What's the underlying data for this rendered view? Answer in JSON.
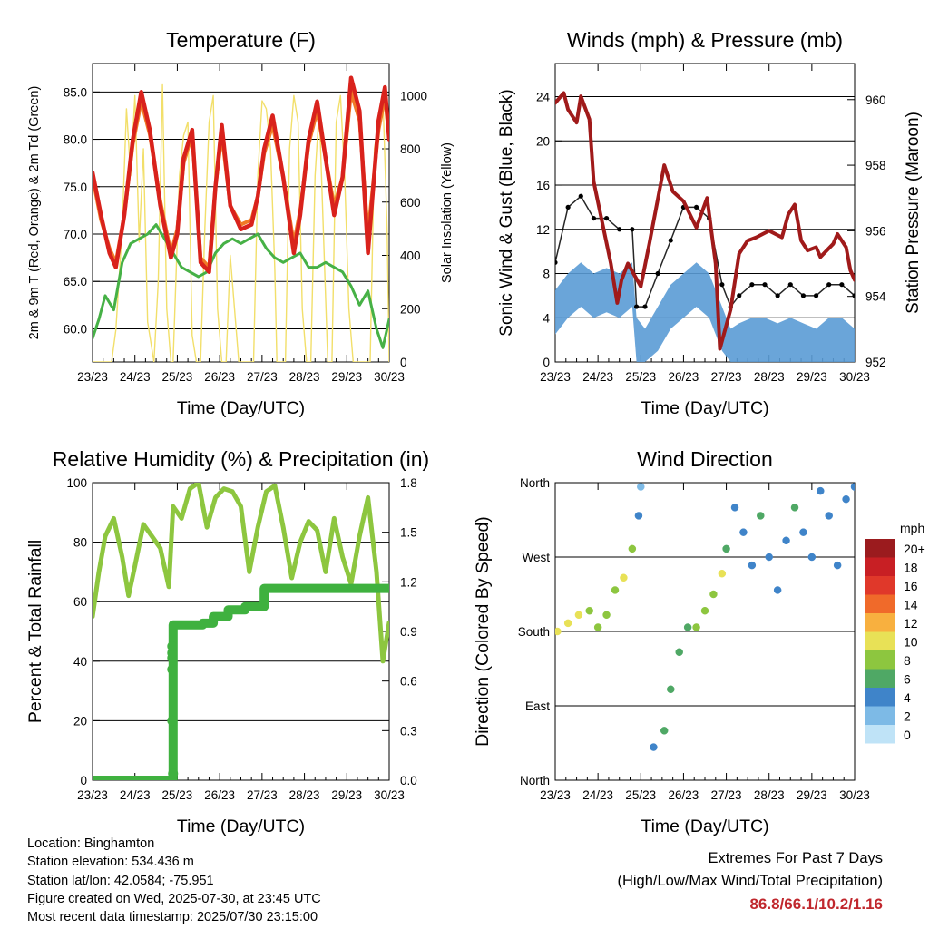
{
  "colors": {
    "temp_2m": "#d9221c",
    "temp_9m": "#f07a26",
    "dewpoint": "#46b146",
    "solar": "#f2df6a",
    "wind": "#5a9bd5",
    "gust": "#000000",
    "pressure": "#a01a1a",
    "rh": "#8dc63f",
    "precip": "#3fb13f",
    "extremes_text": "#c0272d"
  },
  "x_tick_labels": [
    "23/23",
    "24/23",
    "25/23",
    "26/23",
    "27/23",
    "28/23",
    "29/23",
    "30/23"
  ],
  "chart_data": [
    {
      "type": "line",
      "title": "Temperature (F)",
      "xlabel": "Time (Day/UTC)",
      "ylabel": "2m & 9m T (Red, Orange) & 2m Td (Green)",
      "ylabel_right": "Solar Insolation (Yellow)",
      "xlim": [
        0,
        7
      ],
      "ylim": [
        56.5,
        88.0
      ],
      "ylim_right": [
        0,
        1120
      ],
      "y_ticks": [
        "60.0",
        "65.0",
        "70.0",
        "75.0",
        "80.0",
        "85.0"
      ],
      "y_ticks_right": [
        "0",
        "200",
        "400",
        "600",
        "800",
        "1000"
      ],
      "grid": true,
      "series": [
        {
          "key": "temp2m",
          "axis": "left",
          "x": [
            0,
            0.2,
            0.4,
            0.55,
            0.75,
            0.95,
            1.15,
            1.35,
            1.6,
            1.85,
            2.0,
            2.15,
            2.35,
            2.55,
            2.75,
            2.9,
            3.05,
            3.25,
            3.5,
            3.75,
            3.9,
            4.05,
            4.25,
            4.5,
            4.75,
            4.9,
            5.1,
            5.3,
            5.5,
            5.7,
            5.9,
            6.1,
            6.3,
            6.5,
            6.75,
            6.9,
            7.0
          ],
          "values": [
            76.5,
            72,
            68,
            66.5,
            72,
            80,
            85,
            81,
            73,
            67.5,
            70,
            78,
            81,
            67,
            66,
            75,
            81.5,
            73,
            70.5,
            71,
            74,
            79,
            82.5,
            76,
            68,
            72,
            80,
            84,
            78,
            72,
            76,
            86.5,
            83,
            68,
            82,
            85.5,
            80
          ]
        },
        {
          "key": "temp9m",
          "axis": "left",
          "x": [
            0,
            0.2,
            0.4,
            0.55,
            0.75,
            0.95,
            1.15,
            1.35,
            1.6,
            1.85,
            2.0,
            2.15,
            2.35,
            2.55,
            2.75,
            2.9,
            3.05,
            3.25,
            3.5,
            3.75,
            3.9,
            4.05,
            4.25,
            4.5,
            4.75,
            4.9,
            5.1,
            5.3,
            5.5,
            5.7,
            5.9,
            6.1,
            6.3,
            6.5,
            6.75,
            6.9,
            7.0
          ],
          "values": [
            76,
            71.5,
            68.5,
            67,
            72,
            79.5,
            84,
            80.5,
            73.5,
            68,
            70.5,
            77.5,
            80.5,
            67.5,
            66.5,
            75,
            80.5,
            73,
            71,
            71.5,
            74,
            78.5,
            81.5,
            76,
            69,
            72.5,
            79.5,
            83,
            78,
            73,
            76,
            85,
            82,
            70,
            81,
            84.5,
            80
          ]
        },
        {
          "key": "dewpoint",
          "axis": "left",
          "x": [
            0,
            0.15,
            0.3,
            0.5,
            0.7,
            0.9,
            1.1,
            1.3,
            1.5,
            1.7,
            1.9,
            2.1,
            2.3,
            2.5,
            2.7,
            2.9,
            3.1,
            3.3,
            3.5,
            3.7,
            3.9,
            4.1,
            4.3,
            4.5,
            4.7,
            4.9,
            5.1,
            5.3,
            5.5,
            5.7,
            5.9,
            6.1,
            6.3,
            6.5,
            6.7,
            6.85,
            7.0
          ],
          "values": [
            59,
            61,
            63.5,
            62,
            67,
            69,
            69.5,
            70,
            71,
            69.5,
            68,
            66.5,
            66,
            65.5,
            66,
            68,
            69,
            69.5,
            69,
            69.5,
            70,
            68.5,
            67.5,
            67,
            67.5,
            68,
            66.5,
            66.5,
            67,
            66.5,
            66,
            64.5,
            62.5,
            64,
            60,
            58,
            61
          ]
        },
        {
          "key": "solar",
          "axis": "right",
          "x": [
            0,
            0.45,
            0.55,
            0.7,
            0.8,
            0.9,
            1.0,
            1.1,
            1.2,
            1.3,
            1.45,
            1.55,
            1.65,
            1.75,
            1.85,
            1.9,
            2.05,
            2.15,
            2.25,
            2.35,
            2.45,
            2.55,
            2.65,
            2.75,
            2.85,
            2.95,
            3.05,
            3.15,
            3.25,
            3.35,
            3.45,
            3.6,
            3.8,
            3.9,
            4.0,
            4.1,
            4.2,
            4.3,
            4.35,
            4.55,
            4.65,
            4.75,
            4.85,
            4.95,
            5.05,
            5.15,
            5.25,
            5.35,
            5.55,
            5.65,
            5.75,
            5.85,
            5.95,
            6.05,
            6.15,
            6.25,
            6.35,
            6.55,
            6.65,
            6.75,
            6.85,
            6.95,
            7.0
          ],
          "values": [
            0,
            0,
            120,
            500,
            950,
            700,
            1000,
            450,
            800,
            150,
            0,
            300,
            1040,
            200,
            0,
            0,
            700,
            850,
            900,
            100,
            0,
            0,
            500,
            900,
            1000,
            200,
            0,
            0,
            400,
            200,
            0,
            0,
            0,
            700,
            980,
            950,
            800,
            350,
            0,
            0,
            800,
            1000,
            900,
            200,
            0,
            0,
            700,
            950,
            0,
            0,
            900,
            1000,
            700,
            200,
            0,
            0,
            0,
            0,
            800,
            900,
            1000,
            500,
            0
          ]
        }
      ]
    },
    {
      "type": "line",
      "title": "Winds (mph) & Pressure (mb)",
      "xlabel": "Time (Day/UTC)",
      "ylabel": "Sonic Wind & Gust (Blue, Black)",
      "ylabel_right": "Station Pressure (Maroon)",
      "xlim": [
        0,
        7
      ],
      "ylim": [
        0,
        27
      ],
      "ylim_right": [
        952,
        961.1
      ],
      "y_ticks": [
        "0",
        "4",
        "8",
        "12",
        "16",
        "20",
        "24"
      ],
      "y_ticks_right": [
        "952",
        "954",
        "956",
        "958",
        "960"
      ],
      "grid": true,
      "series": [
        {
          "key": "wind",
          "axis": "left",
          "x": [
            0,
            0.3,
            0.6,
            0.9,
            1.2,
            1.5,
            1.8,
            1.9,
            2.1,
            2.4,
            2.7,
            3.0,
            3.3,
            3.6,
            3.9,
            4.1,
            4.3,
            4.6,
            4.9,
            5.2,
            5.5,
            5.8,
            6.1,
            6.4,
            6.7,
            7.0
          ],
          "values": [
            6.5,
            8,
            9,
            8,
            8.5,
            8,
            9,
            4,
            3,
            5,
            7,
            8,
            9,
            8,
            5,
            3,
            3.5,
            4,
            4,
            3.5,
            4,
            3.5,
            3,
            4,
            4,
            3
          ]
        },
        {
          "key": "gust",
          "axis": "left",
          "x": [
            0,
            0.3,
            0.6,
            0.9,
            1.2,
            1.5,
            1.8,
            1.9,
            2.1,
            2.4,
            2.7,
            3.0,
            3.3,
            3.6,
            3.9,
            4.1,
            4.3,
            4.6,
            4.9,
            5.2,
            5.5,
            5.8,
            6.1,
            6.4,
            6.7,
            7.0
          ],
          "values": [
            9,
            14,
            15,
            13,
            13,
            12,
            12,
            5,
            5,
            8,
            11,
            14,
            14,
            13,
            7,
            5,
            6,
            7,
            7,
            6,
            7,
            6,
            6,
            7,
            7,
            6
          ]
        },
        {
          "key": "pressure",
          "axis": "right",
          "x": [
            0,
            0.2,
            0.3,
            0.5,
            0.6,
            0.8,
            0.9,
            1.3,
            1.45,
            1.55,
            1.7,
            2.0,
            2.2,
            2.55,
            2.75,
            3.0,
            3.3,
            3.55,
            3.75,
            3.85,
            4.1,
            4.3,
            4.5,
            4.7,
            5.0,
            5.3,
            5.45,
            5.6,
            5.75,
            5.9,
            6.1,
            6.2,
            6.5,
            6.6,
            6.8,
            6.9,
            7.0
          ],
          "values": [
            959.9,
            960.2,
            959.7,
            959.3,
            960.1,
            959.4,
            957.5,
            955.0,
            953.8,
            954.5,
            955.0,
            954.3,
            955.6,
            958.0,
            957.2,
            956.9,
            956.1,
            957.0,
            955.0,
            952.4,
            953.6,
            955.3,
            955.7,
            955.8,
            956.0,
            955.8,
            956.5,
            956.8,
            955.7,
            955.4,
            955.5,
            955.2,
            955.6,
            955.9,
            955.5,
            954.8,
            954.5
          ]
        }
      ]
    },
    {
      "type": "line",
      "title": "Relative Humidity (%) & Precipitation (in)",
      "xlabel": "Time (Day/UTC)",
      "ylabel": "Percent & Total Rainfall",
      "xlim": [
        0,
        7
      ],
      "ylim": [
        0,
        100
      ],
      "ylim_right": [
        0,
        1.8
      ],
      "y_ticks": [
        "0",
        "20",
        "40",
        "60",
        "80",
        "100"
      ],
      "y_ticks_right": [
        "0.0",
        "0.3",
        "0.6",
        "0.9",
        "1.2",
        "1.5",
        "1.8"
      ],
      "grid": true,
      "series": [
        {
          "key": "rh",
          "axis": "left",
          "x": [
            0,
            0.15,
            0.3,
            0.5,
            0.7,
            0.85,
            1.0,
            1.2,
            1.4,
            1.6,
            1.8,
            1.9,
            2.1,
            2.3,
            2.5,
            2.7,
            2.9,
            3.1,
            3.3,
            3.5,
            3.7,
            3.9,
            4.1,
            4.3,
            4.5,
            4.7,
            4.9,
            5.1,
            5.3,
            5.5,
            5.7,
            5.9,
            6.1,
            6.3,
            6.5,
            6.7,
            6.85,
            7.0
          ],
          "values": [
            55,
            70,
            82,
            88,
            75,
            62,
            72,
            86,
            82,
            78,
            65,
            92,
            88,
            98,
            100,
            85,
            95,
            98,
            97,
            92,
            70,
            85,
            97,
            99,
            85,
            68,
            80,
            87,
            84,
            70,
            88,
            75,
            66,
            82,
            95,
            70,
            40,
            53
          ]
        },
        {
          "key": "precip",
          "axis": "right",
          "x": [
            0,
            1.9,
            1.9,
            2.6,
            2.6,
            2.85,
            2.85,
            3.2,
            3.2,
            3.6,
            3.6,
            4.05,
            4.05,
            7.0
          ],
          "values": [
            0,
            0,
            0.94,
            0.94,
            0.95,
            0.95,
            0.99,
            0.99,
            1.03,
            1.03,
            1.05,
            1.05,
            1.16,
            1.16
          ]
        },
        {
          "key": "precip_burst",
          "axis": "right",
          "x": [
            1.88,
            1.88,
            1.88,
            1.88,
            1.88,
            1.9
          ],
          "values": [
            0.36,
            0.67,
            0.74,
            0.77,
            0.81,
            0.04
          ]
        }
      ]
    },
    {
      "type": "scatter",
      "title": "Wind Direction",
      "xlabel": "Time (Day/UTC)",
      "ylabel": "Direction (Colored By Speed)",
      "xlim": [
        0,
        7
      ],
      "ylim": [
        0,
        360
      ],
      "y_ticks": [
        "North",
        "East",
        "South",
        "West",
        "North"
      ],
      "grid": true,
      "colorbar_title": "mph",
      "colorbar_labels": [
        "0",
        "2",
        "4",
        "6",
        "8",
        "10",
        "12",
        "14",
        "16",
        "18",
        "20+"
      ],
      "colorbar_colors": [
        "#bfe3f7",
        "#7dbae6",
        "#3f84c9",
        "#4fa865",
        "#8dc63f",
        "#e8e156",
        "#f8b03f",
        "#f06a2a",
        "#e0382a",
        "#c81f24",
        "#9b1b1e"
      ],
      "series": [
        {
          "key": "direction",
          "x": [
            0.05,
            0.3,
            0.55,
            0.8,
            1.0,
            1.2,
            1.4,
            1.6,
            1.8,
            1.95,
            2.0,
            2.3,
            2.55,
            2.7,
            2.9,
            3.1,
            3.3,
            3.5,
            3.7,
            3.9,
            4.0,
            4.2,
            4.4,
            4.6,
            4.8,
            5.0,
            5.2,
            5.4,
            5.6,
            5.8,
            6.0,
            6.2,
            6.4,
            6.6,
            6.8,
            7.0
          ],
          "values": [
            180,
            190,
            200,
            205,
            185,
            200,
            230,
            245,
            280,
            320,
            355,
            40,
            60,
            110,
            155,
            185,
            185,
            205,
            225,
            250,
            280,
            330,
            300,
            260,
            320,
            270,
            230,
            290,
            330,
            300,
            270,
            350,
            320,
            260,
            340,
            355
          ],
          "speed": [
            9,
            10,
            9,
            8,
            7,
            8,
            7,
            9,
            8,
            4,
            2,
            4,
            5,
            5,
            5,
            6,
            7,
            7,
            8,
            9,
            6,
            4,
            3,
            4,
            5,
            4,
            3,
            4,
            5,
            4,
            3,
            4,
            3,
            3,
            4,
            4
          ]
        }
      ]
    }
  ],
  "footer": {
    "location": "Location: Binghamton",
    "elevation": "Station elevation: 534.436 m",
    "latlon": "Station lat/lon: 42.0584; -75.951",
    "created": "Figure created on Wed, 2025-07-30, at 23:45 UTC",
    "recent": "Most recent data timestamp: 2025/07/30 23:15:00"
  },
  "extremes": {
    "title": "Extremes For Past 7 Days",
    "subtitle": "(High/Low/Max Wind/Total Precipitation)",
    "values": "86.8/66.1/10.2/1.16"
  }
}
